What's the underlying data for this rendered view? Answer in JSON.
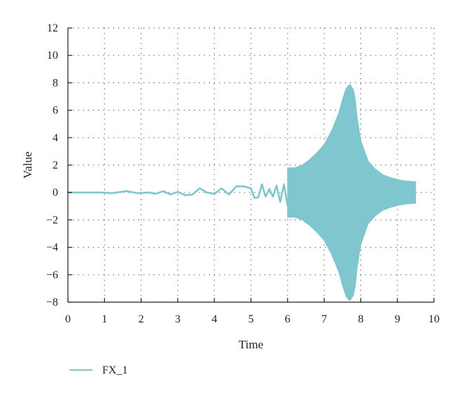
{
  "chart_data": {
    "type": "line",
    "xlabel": "Time",
    "ylabel": "Value",
    "xlim": [
      0,
      10
    ],
    "ylim": [
      -8,
      12
    ],
    "xticks": [
      "0",
      "1",
      "2",
      "3",
      "4",
      "5",
      "6",
      "7",
      "8",
      "9",
      "10"
    ],
    "yticks": [
      "−8",
      "−6",
      "−4",
      "−2",
      "0",
      "2",
      "4",
      "6",
      "8",
      "10",
      "12"
    ],
    "grid": true,
    "legend_position": "bottom-left",
    "series": [
      {
        "name": "FX_1",
        "color": "#7fc6cf",
        "x": [
          0,
          0.3,
          0.6,
          0.9,
          1.2,
          1.6,
          1.9,
          2.2,
          2.4,
          2.6,
          2.8,
          3.0,
          3.2,
          3.4,
          3.6,
          3.8,
          4.0,
          4.2,
          4.4,
          4.6,
          4.8,
          5.0,
          5.1,
          5.2,
          5.3,
          5.4,
          5.5,
          5.6,
          5.7,
          5.8,
          5.9,
          6.0
        ],
        "y": [
          0,
          0,
          0,
          0,
          -0.05,
          0.1,
          -0.05,
          0,
          -0.1,
          0.1,
          -0.15,
          0.05,
          -0.2,
          -0.15,
          0.3,
          0,
          -0.1,
          0.3,
          -0.15,
          0.45,
          0.45,
          0.3,
          -0.4,
          -0.35,
          0.6,
          -0.3,
          0.25,
          -0.3,
          0.5,
          -0.7,
          0.6,
          -1.0
        ]
      }
    ],
    "envelope": {
      "x": [
        6.0,
        6.2,
        6.4,
        6.6,
        6.8,
        7.0,
        7.2,
        7.4,
        7.5,
        7.6,
        7.7,
        7.8,
        7.85,
        7.9,
        8.0,
        8.2,
        8.4,
        8.6,
        8.8,
        9.0,
        9.2,
        9.4,
        9.5
      ],
      "upper": [
        1.8,
        1.8,
        2.0,
        2.4,
        2.9,
        3.5,
        4.5,
        5.8,
        6.8,
        7.6,
        7.9,
        7.5,
        6.8,
        5.5,
        3.8,
        2.3,
        1.7,
        1.3,
        1.1,
        0.95,
        0.85,
        0.8,
        0.8
      ],
      "lower": [
        -1.8,
        -1.8,
        -2.0,
        -2.4,
        -2.9,
        -3.5,
        -4.5,
        -5.8,
        -6.8,
        -7.6,
        -7.9,
        -7.5,
        -6.8,
        -5.5,
        -3.8,
        -2.3,
        -1.7,
        -1.3,
        -1.1,
        -0.95,
        -0.85,
        -0.8,
        -0.8
      ]
    }
  }
}
